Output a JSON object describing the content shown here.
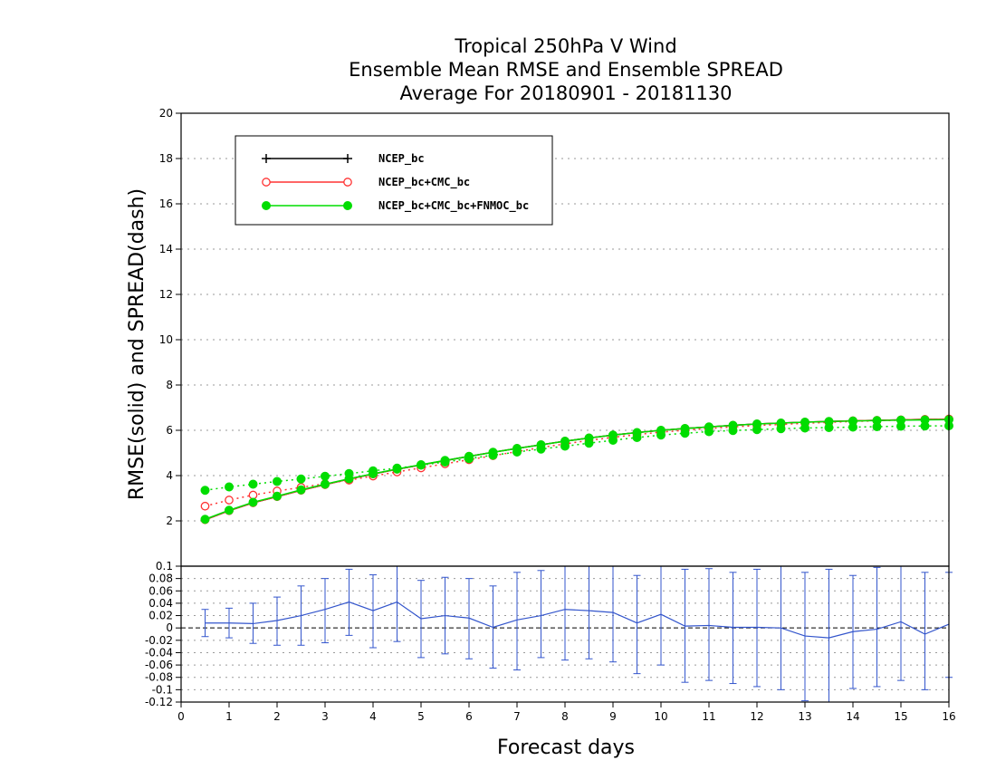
{
  "chart_data": {
    "type": "line",
    "title": [
      "Tropical 250hPa V Wind",
      "Ensemble Mean RMSE and Ensemble SPREAD",
      "Average For 20180901 - 20181130"
    ],
    "xlabel": "Forecast days",
    "ylabel": "RMSE(solid) and SPREAD(dash)",
    "xlim": [
      0,
      16
    ],
    "xticks": [
      "0",
      "1",
      "2",
      "3",
      "4",
      "5",
      "6",
      "7",
      "8",
      "9",
      "10",
      "11",
      "12",
      "13",
      "14",
      "15",
      "16"
    ],
    "top_panel": {
      "ylim": [
        0,
        20
      ],
      "yticks": [
        "2",
        "4",
        "6",
        "8",
        "10",
        "12",
        "14",
        "16",
        "18",
        "20"
      ],
      "grid": true,
      "legend_position": "top-left",
      "x": [
        0.5,
        1,
        1.5,
        2,
        2.5,
        3,
        3.5,
        4,
        4.5,
        5,
        5.5,
        6,
        6.5,
        7,
        7.5,
        8,
        8.5,
        9,
        9.5,
        10,
        10.5,
        11,
        11.5,
        12,
        12.5,
        13,
        13.5,
        14,
        14.5,
        15,
        15.5,
        16
      ],
      "series": [
        {
          "name": "NCEP_bc",
          "color": "#000000",
          "marker": "plus",
          "rmse": [
            2.05,
            2.45,
            2.8,
            3.07,
            3.35,
            3.6,
            3.85,
            4.07,
            4.28,
            4.47,
            4.66,
            4.85,
            5.03,
            5.2,
            5.36,
            5.52,
            5.66,
            5.79,
            5.9,
            6.0,
            6.08,
            6.15,
            6.22,
            6.28,
            6.32,
            6.36,
            6.39,
            6.42,
            6.44,
            6.46,
            6.48,
            6.49
          ]
        },
        {
          "name": "NCEP_bc+CMC_bc",
          "color": "#ff3333",
          "marker": "open-circle",
          "rmse": [
            2.05,
            2.45,
            2.8,
            3.07,
            3.35,
            3.6,
            3.85,
            4.07,
            4.28,
            4.47,
            4.66,
            4.85,
            5.03,
            5.2,
            5.36,
            5.52,
            5.66,
            5.79,
            5.9,
            6.0,
            6.08,
            6.15,
            6.22,
            6.28,
            6.32,
            6.36,
            6.39,
            6.42,
            6.44,
            6.46,
            6.48,
            6.49
          ],
          "spread": [
            2.65,
            2.92,
            3.14,
            3.32,
            3.48,
            3.64,
            3.8,
            3.98,
            4.16,
            4.34,
            4.52,
            4.7,
            4.88,
            5.06,
            5.24,
            5.4,
            5.55,
            5.69,
            5.81,
            5.92,
            6.0,
            6.08,
            6.15,
            6.21,
            6.26,
            6.31,
            6.35,
            6.39,
            6.42,
            6.45,
            6.48,
            6.5
          ]
        },
        {
          "name": "NCEP_bc+CMC_bc+FNMOC_bc",
          "color": "#00dd00",
          "marker": "filled-circle",
          "rmse": [
            2.07,
            2.47,
            2.82,
            3.09,
            3.37,
            3.62,
            3.86,
            4.08,
            4.29,
            4.48,
            4.67,
            4.85,
            5.03,
            5.2,
            5.36,
            5.52,
            5.66,
            5.79,
            5.9,
            6.0,
            6.08,
            6.15,
            6.22,
            6.28,
            6.32,
            6.36,
            6.39,
            6.41,
            6.43,
            6.45,
            6.46,
            6.47
          ],
          "spread": [
            3.35,
            3.5,
            3.62,
            3.74,
            3.85,
            3.97,
            4.09,
            4.21,
            4.33,
            4.46,
            4.6,
            4.75,
            4.9,
            5.04,
            5.17,
            5.3,
            5.43,
            5.56,
            5.68,
            5.79,
            5.87,
            5.94,
            5.99,
            6.03,
            6.07,
            6.1,
            6.12,
            6.14,
            6.16,
            6.18,
            6.19,
            6.2
          ]
        }
      ]
    },
    "bottom_panel": {
      "ylim": [
        -0.12,
        0.1
      ],
      "yticks": [
        "-0.12",
        "-0.1",
        "-0.08",
        "-0.06",
        "-0.04",
        "-0.02",
        "0",
        "0.02",
        "0.04",
        "0.06",
        "0.08",
        "0.1"
      ],
      "grid": true,
      "color": "#3355cc",
      "x": [
        0.5,
        1,
        1.5,
        2,
        2.5,
        3,
        3.5,
        4,
        4.5,
        5,
        5.5,
        6,
        6.5,
        7,
        7.5,
        8,
        8.5,
        9,
        9.5,
        10,
        10.5,
        11,
        11.5,
        12,
        12.5,
        13,
        13.5,
        14,
        14.5,
        15,
        15.5,
        16
      ],
      "values": [
        0.008,
        0.008,
        0.007,
        0.012,
        0.02,
        0.03,
        0.042,
        0.028,
        0.042,
        0.015,
        0.02,
        0.016,
        0.001,
        0.013,
        0.02,
        0.03,
        0.028,
        0.025,
        0.008,
        0.022,
        0.003,
        0.004,
        0.001,
        0.001,
        0.0,
        -0.013,
        -0.016,
        -0.006,
        -0.002,
        0.01,
        -0.01,
        0.006
      ],
      "error_low": [
        -0.014,
        -0.016,
        -0.025,
        -0.028,
        -0.028,
        -0.024,
        -0.012,
        -0.032,
        -0.022,
        -0.048,
        -0.042,
        -0.05,
        -0.065,
        -0.068,
        -0.048,
        -0.052,
        -0.05,
        -0.055,
        -0.074,
        -0.06,
        -0.088,
        -0.085,
        -0.09,
        -0.095,
        -0.1,
        -0.118,
        -0.125,
        -0.098,
        -0.095,
        -0.085,
        -0.1,
        -0.08
      ],
      "error_high": [
        0.03,
        0.032,
        0.04,
        0.05,
        0.068,
        0.08,
        0.095,
        0.086,
        0.103,
        0.077,
        0.082,
        0.08,
        0.068,
        0.09,
        0.093,
        0.102,
        0.103,
        0.1,
        0.085,
        0.1,
        0.095,
        0.096,
        0.09,
        0.095,
        0.1,
        0.09,
        0.095,
        0.085,
        0.098,
        0.1,
        0.09,
        0.09
      ]
    }
  }
}
